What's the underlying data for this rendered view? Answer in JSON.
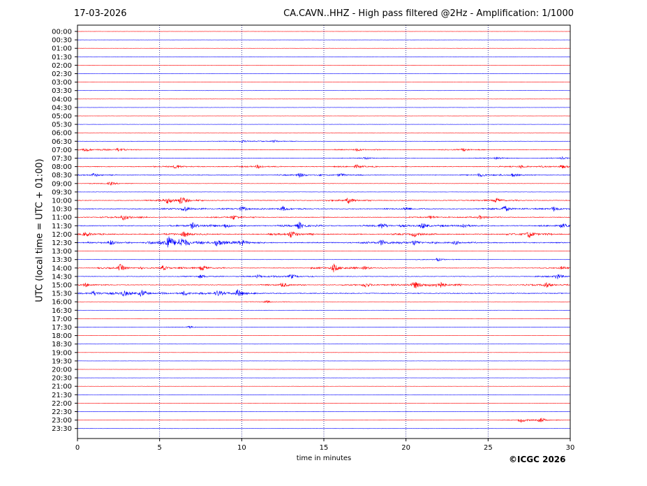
{
  "header": {
    "date": "17-03-2026",
    "title": "CA.CAVN..HHZ - High pass filtered @2Hz - Amplification: 1/1000"
  },
  "footer": {
    "copyright": "©ICGC 2026"
  },
  "chart_data": {
    "type": "line",
    "title": "CA.CAVN..HHZ - High pass filtered @2Hz - Amplification: 1/1000",
    "xlabel": "time in minutes",
    "ylabel": "UTC (local time = UTC + 01:00)",
    "xlim": [
      0,
      30
    ],
    "x_ticks": [
      "0",
      "5",
      "10",
      "15",
      "20",
      "25",
      "30"
    ],
    "vertical_gridlines": [
      5,
      10,
      15,
      20,
      25
    ],
    "row_labels": [
      "00:00",
      "00:30",
      "01:00",
      "01:30",
      "02:00",
      "02:30",
      "03:00",
      "03:30",
      "04:00",
      "04:30",
      "05:00",
      "05:30",
      "06:00",
      "06:30",
      "07:00",
      "07:30",
      "08:00",
      "08:30",
      "09:00",
      "09:30",
      "10:00",
      "10:30",
      "11:00",
      "11:30",
      "12:00",
      "12:30",
      "13:00",
      "13:30",
      "14:00",
      "14:30",
      "15:00",
      "15:30",
      "16:00",
      "16:30",
      "17:00",
      "17:30",
      "18:00",
      "18:30",
      "19:00",
      "19:30",
      "20:00",
      "20:30",
      "21:00",
      "21:30",
      "22:00",
      "22:30",
      "23:00",
      "23:30"
    ],
    "trace_colors": [
      "#ff0000",
      "#0000ff"
    ],
    "traces": [
      {
        "row": "00:00",
        "level": 0.3,
        "events": []
      },
      {
        "row": "00:30",
        "level": 0.3,
        "events": []
      },
      {
        "row": "01:00",
        "level": 0.3,
        "events": []
      },
      {
        "row": "01:30",
        "level": 0.4,
        "events": []
      },
      {
        "row": "02:00",
        "level": 0.3,
        "events": []
      },
      {
        "row": "02:30",
        "level": 0.3,
        "events": []
      },
      {
        "row": "03:00",
        "level": 0.3,
        "events": []
      },
      {
        "row": "03:30",
        "level": 0.3,
        "events": []
      },
      {
        "row": "04:00",
        "level": 0.3,
        "events": []
      },
      {
        "row": "04:30",
        "level": 0.4,
        "events": []
      },
      {
        "row": "05:00",
        "level": 0.3,
        "events": []
      },
      {
        "row": "05:30",
        "level": 0.4,
        "events": []
      },
      {
        "row": "06:00",
        "level": 0.4,
        "events": []
      },
      {
        "row": "06:30",
        "level": 0.6,
        "events": [
          {
            "t": 10.0,
            "a": 2
          },
          {
            "t": 12.0,
            "a": 2
          }
        ]
      },
      {
        "row": "07:00",
        "level": 1.0,
        "events": [
          {
            "t": 0.5,
            "a": 3
          },
          {
            "t": 2.5,
            "a": 3
          },
          {
            "t": 17.0,
            "a": 2.5
          },
          {
            "t": 23.5,
            "a": 2.5
          }
        ]
      },
      {
        "row": "07:30",
        "level": 0.8,
        "events": [
          {
            "t": 17.5,
            "a": 2
          },
          {
            "t": 25.5,
            "a": 2.5
          },
          {
            "t": 29.5,
            "a": 2
          }
        ]
      },
      {
        "row": "08:00",
        "level": 1.2,
        "events": [
          {
            "t": 6.0,
            "a": 3.5
          },
          {
            "t": 11.0,
            "a": 3
          },
          {
            "t": 17.0,
            "a": 3
          },
          {
            "t": 27.0,
            "a": 2.5
          },
          {
            "t": 29.5,
            "a": 3
          }
        ]
      },
      {
        "row": "08:30",
        "level": 1.1,
        "events": [
          {
            "t": 1.0,
            "a": 3
          },
          {
            "t": 13.5,
            "a": 4
          },
          {
            "t": 16.0,
            "a": 3
          },
          {
            "t": 24.5,
            "a": 3
          },
          {
            "t": 26.5,
            "a": 3
          }
        ]
      },
      {
        "row": "09:00",
        "level": 0.6,
        "events": [
          {
            "t": 2.0,
            "a": 3
          }
        ]
      },
      {
        "row": "09:30",
        "level": 0.5,
        "events": []
      },
      {
        "row": "10:00",
        "level": 1.2,
        "events": [
          {
            "t": 5.5,
            "a": 4
          },
          {
            "t": 6.3,
            "a": 6
          },
          {
            "t": 16.5,
            "a": 5
          },
          {
            "t": 25.5,
            "a": 4
          }
        ]
      },
      {
        "row": "10:30",
        "level": 1.3,
        "events": [
          {
            "t": 6.5,
            "a": 5
          },
          {
            "t": 10.0,
            "a": 4
          },
          {
            "t": 12.5,
            "a": 4
          },
          {
            "t": 20.0,
            "a": 3
          },
          {
            "t": 26.0,
            "a": 5
          },
          {
            "t": 29.0,
            "a": 4
          }
        ]
      },
      {
        "row": "11:00",
        "level": 1.2,
        "events": [
          {
            "t": 2.8,
            "a": 5
          },
          {
            "t": 9.5,
            "a": 4
          },
          {
            "t": 21.5,
            "a": 3
          },
          {
            "t": 24.5,
            "a": 3
          }
        ]
      },
      {
        "row": "11:30",
        "level": 1.5,
        "events": [
          {
            "t": 7.0,
            "a": 5
          },
          {
            "t": 9.0,
            "a": 4
          },
          {
            "t": 13.5,
            "a": 6
          },
          {
            "t": 18.5,
            "a": 5
          },
          {
            "t": 21.0,
            "a": 5
          },
          {
            "t": 23.5,
            "a": 4
          },
          {
            "t": 29.5,
            "a": 4
          }
        ]
      },
      {
        "row": "12:00",
        "level": 1.6,
        "events": [
          {
            "t": 0.5,
            "a": 4
          },
          {
            "t": 6.5,
            "a": 5
          },
          {
            "t": 13.0,
            "a": 6
          },
          {
            "t": 20.5,
            "a": 4
          },
          {
            "t": 27.5,
            "a": 6
          }
        ]
      },
      {
        "row": "12:30",
        "level": 1.7,
        "events": [
          {
            "t": 2.0,
            "a": 4
          },
          {
            "t": 5.5,
            "a": 12
          },
          {
            "t": 6.3,
            "a": 8
          },
          {
            "t": 8.5,
            "a": 6
          },
          {
            "t": 10.0,
            "a": 5
          },
          {
            "t": 18.5,
            "a": 5
          },
          {
            "t": 20.5,
            "a": 4
          },
          {
            "t": 23.0,
            "a": 3
          }
        ]
      },
      {
        "row": "13:00",
        "level": 0.4,
        "events": []
      },
      {
        "row": "13:30",
        "level": 0.4,
        "events": [
          {
            "t": 21.9,
            "a": 3
          }
        ]
      },
      {
        "row": "14:00",
        "level": 1.0,
        "events": [
          {
            "t": 2.6,
            "a": 6
          },
          {
            "t": 5.2,
            "a": 4
          },
          {
            "t": 7.6,
            "a": 5
          },
          {
            "t": 15.6,
            "a": 7
          },
          {
            "t": 17.5,
            "a": 3
          },
          {
            "t": 29.5,
            "a": 3
          }
        ]
      },
      {
        "row": "14:30",
        "level": 1.0,
        "events": [
          {
            "t": 7.5,
            "a": 3
          },
          {
            "t": 11.0,
            "a": 3
          },
          {
            "t": 13.0,
            "a": 4
          },
          {
            "t": 29.2,
            "a": 5
          }
        ]
      },
      {
        "row": "15:00",
        "level": 1.2,
        "events": [
          {
            "t": 0.5,
            "a": 3
          },
          {
            "t": 12.5,
            "a": 4
          },
          {
            "t": 17.5,
            "a": 4
          },
          {
            "t": 20.5,
            "a": 6
          },
          {
            "t": 22.0,
            "a": 7
          },
          {
            "t": 28.5,
            "a": 5
          }
        ]
      },
      {
        "row": "15:30",
        "level": 1.4,
        "events": [
          {
            "t": 1.0,
            "a": 4
          },
          {
            "t": 2.8,
            "a": 4
          },
          {
            "t": 3.9,
            "a": 5
          },
          {
            "t": 6.5,
            "a": 4
          },
          {
            "t": 8.5,
            "a": 4
          },
          {
            "t": 9.8,
            "a": 6
          }
        ]
      },
      {
        "row": "16:00",
        "level": 0.4,
        "events": [
          {
            "t": 11.5,
            "a": 2
          }
        ]
      },
      {
        "row": "16:30",
        "level": 0.3,
        "events": []
      },
      {
        "row": "17:00",
        "level": 0.3,
        "events": []
      },
      {
        "row": "17:30",
        "level": 0.4,
        "events": [
          {
            "t": 6.8,
            "a": 2
          }
        ]
      },
      {
        "row": "18:00",
        "level": 0.3,
        "events": []
      },
      {
        "row": "18:30",
        "level": 0.3,
        "events": []
      },
      {
        "row": "19:00",
        "level": 0.3,
        "events": []
      },
      {
        "row": "19:30",
        "level": 0.3,
        "events": []
      },
      {
        "row": "20:00",
        "level": 0.3,
        "events": []
      },
      {
        "row": "20:30",
        "level": 0.3,
        "events": []
      },
      {
        "row": "21:00",
        "level": 0.3,
        "events": []
      },
      {
        "row": "21:30",
        "level": 0.3,
        "events": []
      },
      {
        "row": "22:00",
        "level": 0.3,
        "events": []
      },
      {
        "row": "22:30",
        "level": 0.3,
        "events": []
      },
      {
        "row": "23:00",
        "level": 0.3,
        "events": [
          {
            "t": 27.0,
            "a": 3
          },
          {
            "t": 28.2,
            "a": 4
          }
        ]
      },
      {
        "row": "23:30",
        "level": 0.3,
        "events": []
      }
    ]
  }
}
